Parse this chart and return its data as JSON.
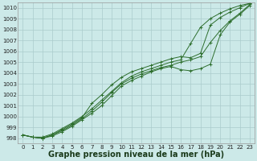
{
  "bg_color": "#cce9e8",
  "grid_color": "#aacccc",
  "line_color": "#2d6e2d",
  "marker_color": "#2d6e2d",
  "title": "Graphe pression niveau de la mer (hPa)",
  "xlim": [
    -0.5,
    23.5
  ],
  "ylim": [
    997.5,
    1010.5
  ],
  "yticks": [
    998,
    999,
    1000,
    1001,
    1002,
    1003,
    1004,
    1005,
    1006,
    1007,
    1008,
    1009,
    1010
  ],
  "xticks": [
    0,
    1,
    2,
    3,
    4,
    5,
    6,
    7,
    8,
    9,
    10,
    11,
    12,
    13,
    14,
    15,
    16,
    17,
    18,
    19,
    20,
    21,
    22,
    23
  ],
  "series": [
    [
      998.3,
      998.1,
      998.0,
      998.3,
      998.7,
      999.2,
      999.8,
      1000.5,
      1001.3,
      1002.2,
      1003.0,
      1003.5,
      1003.9,
      1004.2,
      1004.5,
      1004.7,
      1005.0,
      1005.2,
      1005.5,
      1006.8,
      1007.9,
      1008.8,
      1009.5,
      1010.3
    ],
    [
      998.3,
      998.1,
      998.0,
      998.2,
      998.6,
      999.1,
      999.7,
      1000.3,
      1001.0,
      1001.9,
      1002.8,
      1003.3,
      1003.7,
      1004.1,
      1004.4,
      1004.6,
      1004.3,
      1004.2,
      1004.4,
      1004.8,
      1007.5,
      1008.7,
      1009.4,
      1010.2
    ],
    [
      998.3,
      998.1,
      998.1,
      998.4,
      998.9,
      999.4,
      1000.0,
      1000.7,
      1001.5,
      1002.3,
      1003.1,
      1003.7,
      1004.1,
      1004.4,
      1004.7,
      1005.0,
      1005.2,
      1006.7,
      1008.2,
      1009.0,
      1009.5,
      1009.9,
      1010.2,
      1010.4
    ],
    [
      998.3,
      998.1,
      998.0,
      998.3,
      998.8,
      999.3,
      999.9,
      1001.2,
      1002.0,
      1002.9,
      1003.6,
      1004.1,
      1004.4,
      1004.7,
      1005.0,
      1005.3,
      1005.5,
      1005.4,
      1005.8,
      1008.4,
      1009.1,
      1009.6,
      1010.0,
      1010.4
    ]
  ],
  "title_fontsize": 7,
  "tick_fontsize": 5,
  "title_color": "#1a3a1a"
}
